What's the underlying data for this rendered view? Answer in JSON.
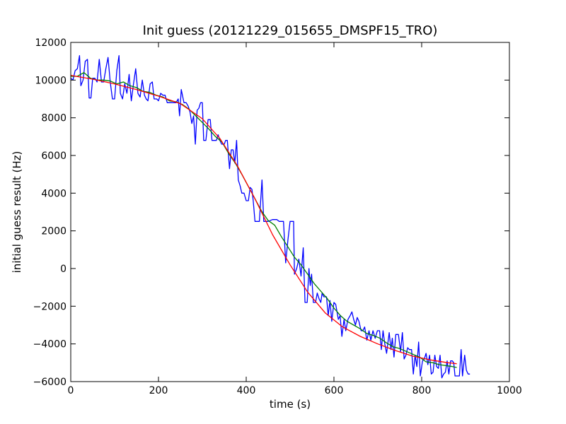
{
  "chart_data": {
    "type": "line",
    "title": "Init guess (20121229_015655_DMSPF15_TRO)",
    "xlabel": "time (s)",
    "ylabel": "initial guess result (Hz)",
    "xlim": [
      0,
      1000
    ],
    "ylim": [
      -6000,
      12000
    ],
    "xticks": [
      0,
      200,
      400,
      600,
      800,
      1000
    ],
    "yticks": [
      -6000,
      -4000,
      -2000,
      0,
      2000,
      4000,
      6000,
      8000,
      10000,
      12000
    ],
    "xtick_labels": [
      "0",
      "200",
      "400",
      "600",
      "800",
      "1000"
    ],
    "ytick_labels": [
      "−6000",
      "−4000",
      "−2000",
      "0",
      "2000",
      "4000",
      "6000",
      "8000",
      "10000",
      "12000"
    ],
    "grid": false,
    "series": [
      {
        "color": "#0000ff",
        "points": [
          [
            0,
            10100
          ],
          [
            5,
            10000
          ],
          [
            10,
            10500
          ],
          [
            15,
            10600
          ],
          [
            20,
            11300
          ],
          [
            23,
            9700
          ],
          [
            28,
            10000
          ],
          [
            33,
            11000
          ],
          [
            38,
            11100
          ],
          [
            42,
            9050
          ],
          [
            46,
            9050
          ],
          [
            50,
            10100
          ],
          [
            55,
            10100
          ],
          [
            60,
            9900
          ],
          [
            65,
            11100
          ],
          [
            70,
            9900
          ],
          [
            75,
            9900
          ],
          [
            80,
            10600
          ],
          [
            85,
            11200
          ],
          [
            90,
            9900
          ],
          [
            95,
            9000
          ],
          [
            100,
            9000
          ],
          [
            105,
            10500
          ],
          [
            110,
            11300
          ],
          [
            113,
            9300
          ],
          [
            118,
            9000
          ],
          [
            123,
            9800
          ],
          [
            128,
            9300
          ],
          [
            133,
            10300
          ],
          [
            138,
            8900
          ],
          [
            143,
            9800
          ],
          [
            148,
            10600
          ],
          [
            153,
            9300
          ],
          [
            158,
            9100
          ],
          [
            163,
            10000
          ],
          [
            168,
            9200
          ],
          [
            172,
            9000
          ],
          [
            176,
            8900
          ],
          [
            181,
            9800
          ],
          [
            186,
            9900
          ],
          [
            190,
            9000
          ],
          [
            196,
            9000
          ],
          [
            200,
            8900
          ],
          [
            205,
            9300
          ],
          [
            210,
            9200
          ],
          [
            215,
            9200
          ],
          [
            220,
            8800
          ],
          [
            230,
            8800
          ],
          [
            240,
            8800
          ],
          [
            245,
            9000
          ],
          [
            248,
            8100
          ],
          [
            252,
            9500
          ],
          [
            258,
            8800
          ],
          [
            263,
            8800
          ],
          [
            268,
            8600
          ],
          [
            272,
            8300
          ],
          [
            276,
            7700
          ],
          [
            280,
            8100
          ],
          [
            284,
            6600
          ],
          [
            288,
            8400
          ],
          [
            292,
            8500
          ],
          [
            296,
            8800
          ],
          [
            300,
            8800
          ],
          [
            303,
            6800
          ],
          [
            308,
            6800
          ],
          [
            313,
            7900
          ],
          [
            318,
            7900
          ],
          [
            322,
            6800
          ],
          [
            332,
            6800
          ],
          [
            336,
            7100
          ],
          [
            340,
            6800
          ],
          [
            344,
            6600
          ],
          [
            350,
            6600
          ],
          [
            353,
            6800
          ],
          [
            357,
            6800
          ],
          [
            362,
            5300
          ],
          [
            366,
            6300
          ],
          [
            370,
            6300
          ],
          [
            374,
            5600
          ],
          [
            378,
            6800
          ],
          [
            382,
            4700
          ],
          [
            386,
            4400
          ],
          [
            390,
            4000
          ],
          [
            395,
            4000
          ],
          [
            400,
            3600
          ],
          [
            405,
            3600
          ],
          [
            409,
            4300
          ],
          [
            413,
            4200
          ],
          [
            416,
            3600
          ],
          [
            420,
            2500
          ],
          [
            430,
            2500
          ],
          [
            436,
            4700
          ],
          [
            440,
            2500
          ],
          [
            450,
            2500
          ],
          [
            460,
            2600
          ],
          [
            470,
            2600
          ],
          [
            475,
            2500
          ],
          [
            480,
            2500
          ],
          [
            485,
            2500
          ],
          [
            490,
            300
          ],
          [
            495,
            1500
          ],
          [
            500,
            2500
          ],
          [
            508,
            2500
          ],
          [
            510,
            -300
          ],
          [
            515,
            0
          ],
          [
            520,
            500
          ],
          [
            525,
            -400
          ],
          [
            530,
            1100
          ],
          [
            534,
            -1800
          ],
          [
            539,
            -1800
          ],
          [
            543,
            0
          ],
          [
            546,
            -900
          ],
          [
            549,
            -300
          ],
          [
            553,
            -1800
          ],
          [
            558,
            -1800
          ],
          [
            562,
            -1300
          ],
          [
            566,
            -1600
          ],
          [
            570,
            -1800
          ],
          [
            573,
            -1300
          ],
          [
            577,
            -1500
          ],
          [
            583,
            -1500
          ],
          [
            587,
            -2500
          ],
          [
            591,
            -1700
          ],
          [
            595,
            -2800
          ],
          [
            600,
            -1800
          ],
          [
            604,
            -1900
          ],
          [
            610,
            -2700
          ],
          [
            614,
            -2500
          ],
          [
            618,
            -3600
          ],
          [
            623,
            -2700
          ],
          [
            627,
            -3300
          ],
          [
            632,
            -2700
          ],
          [
            637,
            -2500
          ],
          [
            641,
            -2300
          ],
          [
            645,
            -2700
          ],
          [
            649,
            -3000
          ],
          [
            653,
            -2600
          ],
          [
            657,
            -2800
          ],
          [
            662,
            -3300
          ],
          [
            666,
            -3300
          ],
          [
            670,
            -3100
          ],
          [
            675,
            -3800
          ],
          [
            680,
            -3300
          ],
          [
            684,
            -3800
          ],
          [
            689,
            -3300
          ],
          [
            694,
            -3700
          ],
          [
            699,
            -3300
          ],
          [
            704,
            -3300
          ],
          [
            708,
            -4300
          ],
          [
            712,
            -3300
          ],
          [
            716,
            -4000
          ],
          [
            720,
            -4500
          ],
          [
            726,
            -3400
          ],
          [
            730,
            -4300
          ],
          [
            733,
            -3700
          ],
          [
            737,
            -4700
          ],
          [
            741,
            -3500
          ],
          [
            747,
            -3500
          ],
          [
            752,
            -4400
          ],
          [
            756,
            -3400
          ],
          [
            760,
            -4800
          ],
          [
            764,
            -4600
          ],
          [
            768,
            -4200
          ],
          [
            772,
            -4300
          ],
          [
            777,
            -4300
          ],
          [
            781,
            -5600
          ],
          [
            785,
            -4600
          ],
          [
            789,
            -5200
          ],
          [
            793,
            -3900
          ],
          [
            797,
            -5700
          ],
          [
            802,
            -4900
          ],
          [
            806,
            -4800
          ],
          [
            810,
            -4500
          ],
          [
            814,
            -5100
          ],
          [
            818,
            -4600
          ],
          [
            822,
            -5600
          ],
          [
            826,
            -5500
          ],
          [
            830,
            -4600
          ],
          [
            834,
            -5200
          ],
          [
            838,
            -5300
          ],
          [
            842,
            -4600
          ],
          [
            846,
            -5800
          ],
          [
            850,
            -5600
          ],
          [
            854,
            -5500
          ],
          [
            858,
            -4900
          ],
          [
            862,
            -5600
          ],
          [
            866,
            -4900
          ],
          [
            870,
            -4900
          ],
          [
            873,
            -5000
          ],
          [
            876,
            -5700
          ],
          [
            880,
            -5700
          ],
          [
            886,
            -5700
          ],
          [
            890,
            -4300
          ],
          [
            893,
            -5700
          ],
          [
            898,
            -4600
          ],
          [
            902,
            -5400
          ],
          [
            906,
            -5600
          ],
          [
            910,
            -5600
          ]
        ]
      },
      {
        "color": "#008000",
        "points": [
          [
            0,
            10200
          ],
          [
            15,
            10200
          ],
          [
            30,
            10400
          ],
          [
            45,
            10100
          ],
          [
            60,
            10000
          ],
          [
            75,
            10000
          ],
          [
            90,
            9950
          ],
          [
            105,
            9800
          ],
          [
            120,
            9900
          ],
          [
            135,
            9700
          ],
          [
            150,
            9600
          ],
          [
            165,
            9400
          ],
          [
            180,
            9350
          ],
          [
            195,
            9200
          ],
          [
            210,
            9100
          ],
          [
            225,
            8900
          ],
          [
            240,
            8850
          ],
          [
            255,
            8700
          ],
          [
            270,
            8450
          ],
          [
            285,
            8100
          ],
          [
            300,
            7750
          ],
          [
            315,
            7400
          ],
          [
            330,
            7000
          ],
          [
            345,
            6700
          ],
          [
            360,
            6100
          ],
          [
            375,
            5600
          ],
          [
            390,
            5000
          ],
          [
            405,
            4350
          ],
          [
            420,
            3700
          ],
          [
            435,
            3050
          ],
          [
            450,
            2550
          ],
          [
            465,
            2300
          ],
          [
            480,
            1700
          ],
          [
            495,
            1150
          ],
          [
            510,
            600
          ],
          [
            525,
            200
          ],
          [
            540,
            -300
          ],
          [
            555,
            -800
          ],
          [
            570,
            -1200
          ],
          [
            585,
            -1600
          ],
          [
            600,
            -2100
          ],
          [
            615,
            -2500
          ],
          [
            630,
            -2800
          ],
          [
            645,
            -3000
          ],
          [
            660,
            -3200
          ],
          [
            675,
            -3450
          ],
          [
            690,
            -3550
          ],
          [
            705,
            -3700
          ],
          [
            720,
            -3950
          ],
          [
            735,
            -4150
          ],
          [
            750,
            -4250
          ],
          [
            765,
            -4400
          ],
          [
            780,
            -4550
          ],
          [
            795,
            -4700
          ],
          [
            810,
            -4950
          ],
          [
            825,
            -5000
          ],
          [
            840,
            -5100
          ],
          [
            855,
            -5150
          ],
          [
            870,
            -5200
          ],
          [
            880,
            -5250
          ]
        ]
      },
      {
        "color": "#ff0000",
        "points": [
          [
            0,
            10250
          ],
          [
            50,
            10050
          ],
          [
            100,
            9800
          ],
          [
            150,
            9500
          ],
          [
            200,
            9150
          ],
          [
            250,
            8750
          ],
          [
            300,
            7950
          ],
          [
            340,
            6900
          ],
          [
            380,
            5450
          ],
          [
            420,
            3700
          ],
          [
            460,
            1800
          ],
          [
            500,
            200
          ],
          [
            540,
            -1250
          ],
          [
            580,
            -2350
          ],
          [
            620,
            -3100
          ],
          [
            660,
            -3600
          ],
          [
            700,
            -4000
          ],
          [
            740,
            -4350
          ],
          [
            780,
            -4650
          ],
          [
            820,
            -4850
          ],
          [
            860,
            -5000
          ],
          [
            880,
            -5050
          ]
        ]
      }
    ]
  }
}
